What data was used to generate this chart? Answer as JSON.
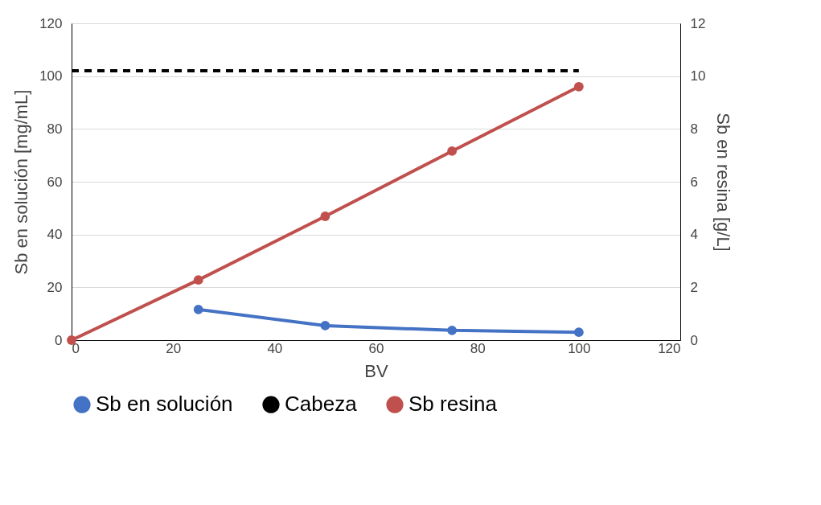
{
  "chart_data": {
    "type": "line",
    "xlabel": "BV",
    "ylabel": "Sb en solución [mg/mL]",
    "y2label": "Sb en resina [g/L]",
    "xlim": [
      0,
      120
    ],
    "xticks": [
      0,
      20,
      40,
      60,
      80,
      100,
      120
    ],
    "ylim": [
      0,
      120
    ],
    "yticks": [
      0,
      20,
      40,
      60,
      80,
      100,
      120
    ],
    "y2lim": [
      0,
      12
    ],
    "y2ticks": [
      0,
      2,
      4,
      6,
      8,
      10,
      12
    ],
    "grid": "y",
    "legend": "bottom",
    "series": [
      {
        "name": "Sb en solución",
        "color": "#4472c4",
        "x": [
          25,
          50,
          75,
          100
        ],
        "values": [
          11.6,
          5.5,
          3.7,
          3.0
        ],
        "marker": "circle",
        "line_style": "solid"
      },
      {
        "name": "Cabeza",
        "color": "#000000",
        "x": [
          0,
          100
        ],
        "values": [
          102,
          102
        ],
        "marker": "none",
        "line_style": "dashed"
      },
      {
        "name": "Sb resina",
        "color": "#c0504d",
        "x": [
          0,
          25,
          50,
          75,
          100
        ],
        "values": [
          0,
          2.28,
          4.69,
          7.16,
          9.6
        ],
        "marker": "circle",
        "line_style": "solid",
        "axis": "y2"
      }
    ]
  }
}
